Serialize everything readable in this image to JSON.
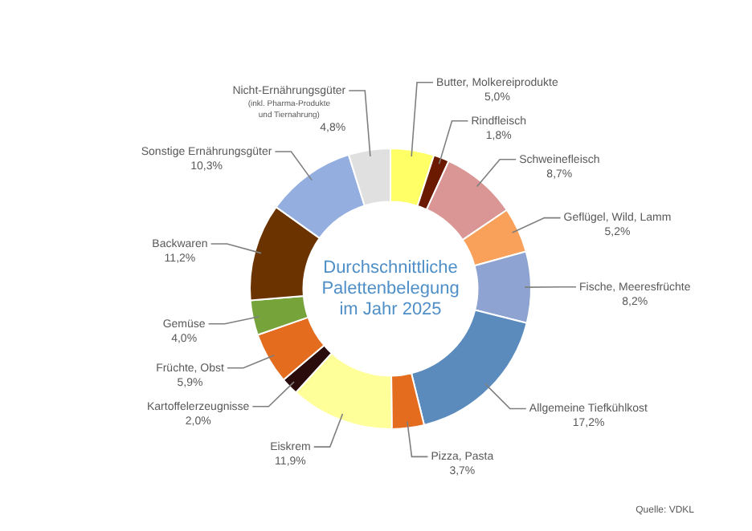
{
  "chart_data": {
    "type": "donut",
    "title": "Durchschnittliche Palettenbelegung im Jahr 2025",
    "categories": [
      "Butter, Molkereiprodukte",
      "Rindfleisch",
      "Schweinefleisch",
      "Geflügel, Wild, Lamm",
      "Fische, Meeresfrüchte",
      "Allgemeine Tiefkühlkost",
      "Pizza, Pasta",
      "Eiskrem",
      "Kartoffelerzeugnisse",
      "Früchte, Obst",
      "Gemüse",
      "Backwaren",
      "Sonstige Ernährungsgüter",
      "Nicht-Ernährungsgüter"
    ],
    "values": [
      5.0,
      1.8,
      8.7,
      5.2,
      8.2,
      17.2,
      3.7,
      11.9,
      2.0,
      5.9,
      4.0,
      11.2,
      10.3,
      4.8
    ],
    "value_labels": [
      "5,0%",
      "1,8%",
      "8,7%",
      "5,2%",
      "8,2%",
      "17,2%",
      "3,7%",
      "11,9%",
      "2,0%",
      "5,9%",
      "4,0%",
      "11,2%",
      "10,3%",
      "4,8%"
    ],
    "colors": [
      "#ffff66",
      "#6b1a00",
      "#d99694",
      "#f9a05a",
      "#8ea3d1",
      "#5b8bbd",
      "#e46c1f",
      "#ffff99",
      "#2a0c0c",
      "#e36c1e",
      "#77a33b",
      "#6b3300",
      "#95aee0",
      "#e0e0e0"
    ],
    "legend": false,
    "annotations": [
      {
        "text": "(inkl. Pharma-Produkte und Tiernahrung)",
        "x": "Nicht-Ernährungsgüter"
      },
      "Quelle: VDKL"
    ]
  }
}
